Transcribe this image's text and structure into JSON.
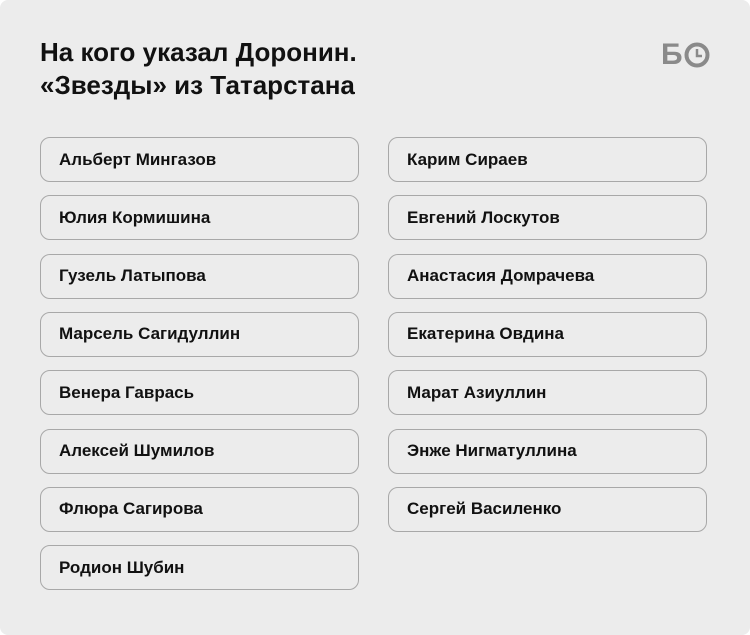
{
  "title_line1": "На кого указал Доронин.",
  "title_line2": "«Звезды» из Татарстана",
  "logo": "БО",
  "left_column": [
    "Альберт Мингазов",
    "Юлия Кормишина",
    "Гузель Латыпова",
    "Марсель Сагидуллин",
    "Венера Гаврась",
    "Алексей Шумилов",
    "Флюра Сагирова",
    "Родион Шубин"
  ],
  "right_column": [
    "Карим Сираев",
    "Евгений Лоскутов",
    "Анастасия Домрачева",
    "Екатерина Овдина",
    "Марат Азиуллин",
    "Энже Нигматуллина",
    "Сергей Василенко"
  ]
}
